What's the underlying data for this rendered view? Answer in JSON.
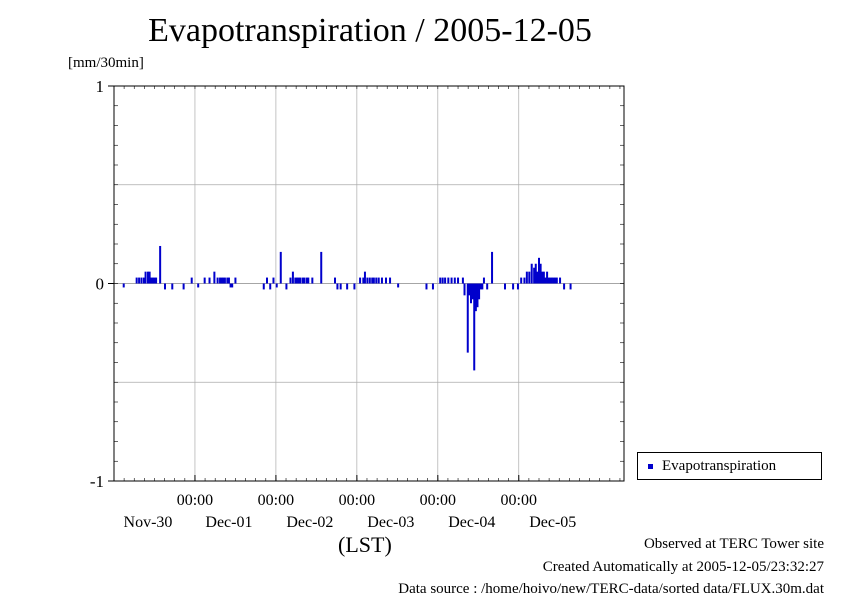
{
  "chart_data": {
    "type": "bar",
    "title": "Evapotranspiration / 2005-12-05",
    "ylabel": "[mm/30min]",
    "xlabel": "(LST)",
    "ylim": [
      -1,
      1
    ],
    "y_ticks": [
      "1",
      "0",
      "-1"
    ],
    "x_tick_time_label": "00:00",
    "x_day_labels": [
      "Nov-30",
      "Dec-01",
      "Dec-02",
      "Dec-03",
      "Dec-04",
      "Dec-05"
    ],
    "x_range_days": [
      0.0,
      6.3
    ],
    "x_day_ticks": [
      1,
      2,
      3,
      4,
      5
    ],
    "grid": true,
    "legend_position": "right",
    "series": [
      {
        "name": "Evapotranspiration",
        "color": "#0000cc",
        "x": [
          0.12,
          0.28,
          0.31,
          0.34,
          0.37,
          0.39,
          0.42,
          0.44,
          0.46,
          0.48,
          0.5,
          0.52,
          0.57,
          0.63,
          0.72,
          0.86,
          0.96,
          1.04,
          1.12,
          1.18,
          1.24,
          1.28,
          1.31,
          1.33,
          1.35,
          1.37,
          1.4,
          1.42,
          1.44,
          1.46,
          1.5,
          1.85,
          1.89,
          1.93,
          1.97,
          2.01,
          2.06,
          2.13,
          2.18,
          2.21,
          2.24,
          2.26,
          2.28,
          2.3,
          2.33,
          2.35,
          2.38,
          2.4,
          2.45,
          2.56,
          2.73,
          2.76,
          2.8,
          2.88,
          2.97,
          3.04,
          3.08,
          3.1,
          3.13,
          3.16,
          3.19,
          3.21,
          3.24,
          3.27,
          3.31,
          3.36,
          3.41,
          3.51,
          3.86,
          3.94,
          4.03,
          4.06,
          4.09,
          4.13,
          4.17,
          4.21,
          4.25,
          4.31,
          4.33,
          4.37,
          4.39,
          4.41,
          4.43,
          4.45,
          4.47,
          4.49,
          4.51,
          4.53,
          4.55,
          4.57,
          4.61,
          4.67,
          4.83,
          4.93,
          4.99,
          5.03,
          5.07,
          5.1,
          5.13,
          5.16,
          5.19,
          5.21,
          5.23,
          5.25,
          5.27,
          5.29,
          5.31,
          5.33,
          5.35,
          5.37,
          5.39,
          5.41,
          5.43,
          5.45,
          5.47,
          5.51,
          5.56,
          5.64
        ],
        "values": [
          -0.02,
          0.03,
          0.03,
          0.03,
          0.03,
          0.06,
          0.06,
          0.06,
          0.03,
          0.03,
          0.03,
          0.03,
          0.19,
          -0.03,
          -0.03,
          -0.03,
          0.03,
          -0.02,
          0.03,
          0.03,
          0.06,
          0.03,
          0.03,
          0.03,
          0.03,
          0.03,
          0.03,
          0.03,
          -0.02,
          -0.02,
          0.03,
          -0.03,
          0.03,
          -0.03,
          0.03,
          -0.02,
          0.16,
          -0.03,
          0.03,
          0.06,
          0.03,
          0.03,
          0.03,
          0.03,
          0.03,
          0.03,
          0.03,
          0.03,
          0.03,
          0.16,
          0.03,
          -0.03,
          -0.03,
          -0.03,
          -0.03,
          0.03,
          0.03,
          0.06,
          0.03,
          0.03,
          0.03,
          0.03,
          0.03,
          0.03,
          0.03,
          0.03,
          0.03,
          -0.02,
          -0.03,
          -0.03,
          0.03,
          0.03,
          0.03,
          0.03,
          0.03,
          0.03,
          0.03,
          0.03,
          -0.06,
          -0.35,
          -0.06,
          -0.1,
          -0.08,
          -0.44,
          -0.14,
          -0.12,
          -0.08,
          -0.03,
          -0.03,
          0.03,
          -0.03,
          0.16,
          -0.03,
          -0.03,
          -0.03,
          0.03,
          0.03,
          0.06,
          0.06,
          0.1,
          0.08,
          0.1,
          0.06,
          0.13,
          0.1,
          0.06,
          0.06,
          0.03,
          0.06,
          0.03,
          0.03,
          0.03,
          0.03,
          0.03,
          0.03,
          0.03,
          -0.03,
          -0.03
        ]
      }
    ]
  },
  "footer": {
    "line1": "Observed at TERC Tower site",
    "line2": "Created Automatically at 2005-12-05/23:32:27",
    "line3": "Data source : /home/hoivo/new/TERC-data/sorted  data/FLUX.30m.dat"
  }
}
